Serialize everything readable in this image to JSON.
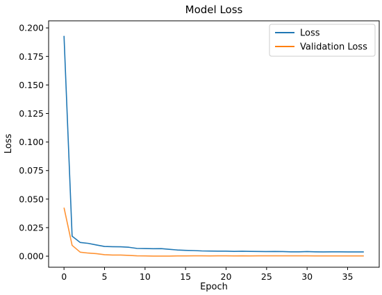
{
  "chart_data": {
    "type": "line",
    "title": "Model Loss",
    "xlabel": "Epoch",
    "ylabel": "Loss",
    "xlim": [
      -1.9,
      38.9
    ],
    "ylim": [
      -0.0097,
      0.2062
    ],
    "xticks": [
      0,
      5,
      10,
      15,
      20,
      25,
      30,
      35
    ],
    "yticks": [
      0.0,
      0.025,
      0.05,
      0.075,
      0.1,
      0.125,
      0.15,
      0.175,
      0.2
    ],
    "ytick_labels": [
      "0.000",
      "0.025",
      "0.050",
      "0.075",
      "0.100",
      "0.125",
      "0.150",
      "0.175",
      "0.200"
    ],
    "grid": false,
    "legend_position": "top-right",
    "x": [
      0,
      1,
      2,
      3,
      4,
      5,
      6,
      7,
      8,
      9,
      10,
      11,
      12,
      13,
      14,
      15,
      16,
      17,
      18,
      19,
      20,
      21,
      22,
      23,
      24,
      25,
      26,
      27,
      28,
      29,
      30,
      31,
      32,
      33,
      34,
      35,
      36,
      37
    ],
    "series": [
      {
        "name": "Loss",
        "color": "#1f77b4",
        "values": [
          0.193,
          0.0175,
          0.012,
          0.0112,
          0.0098,
          0.0085,
          0.0083,
          0.0082,
          0.0078,
          0.0068,
          0.0067,
          0.0065,
          0.0066,
          0.006,
          0.0054,
          0.0051,
          0.0049,
          0.0046,
          0.0045,
          0.0044,
          0.0044,
          0.0042,
          0.0043,
          0.0042,
          0.0041,
          0.004,
          0.0041,
          0.004,
          0.0038,
          0.0038,
          0.004,
          0.0038,
          0.0037,
          0.0038,
          0.0038,
          0.0037,
          0.0037,
          0.0037
        ]
      },
      {
        "name": "Validation Loss",
        "color": "#ff7f0e",
        "values": [
          0.0425,
          0.0095,
          0.0035,
          0.0027,
          0.0022,
          0.0013,
          0.001,
          0.001,
          0.0007,
          0.0003,
          0.0002,
          0.0001,
          0.0001,
          0.0001,
          0.0002,
          0.0002,
          0.0003,
          0.0003,
          0.0002,
          0.0003,
          0.0003,
          0.0002,
          0.0003,
          0.0002,
          0.0003,
          0.0003,
          0.0003,
          0.0003,
          0.0003,
          0.0003,
          0.0003,
          0.0002,
          0.0002,
          0.0002,
          0.0002,
          0.0002,
          0.0002,
          0.0002
        ]
      }
    ]
  }
}
